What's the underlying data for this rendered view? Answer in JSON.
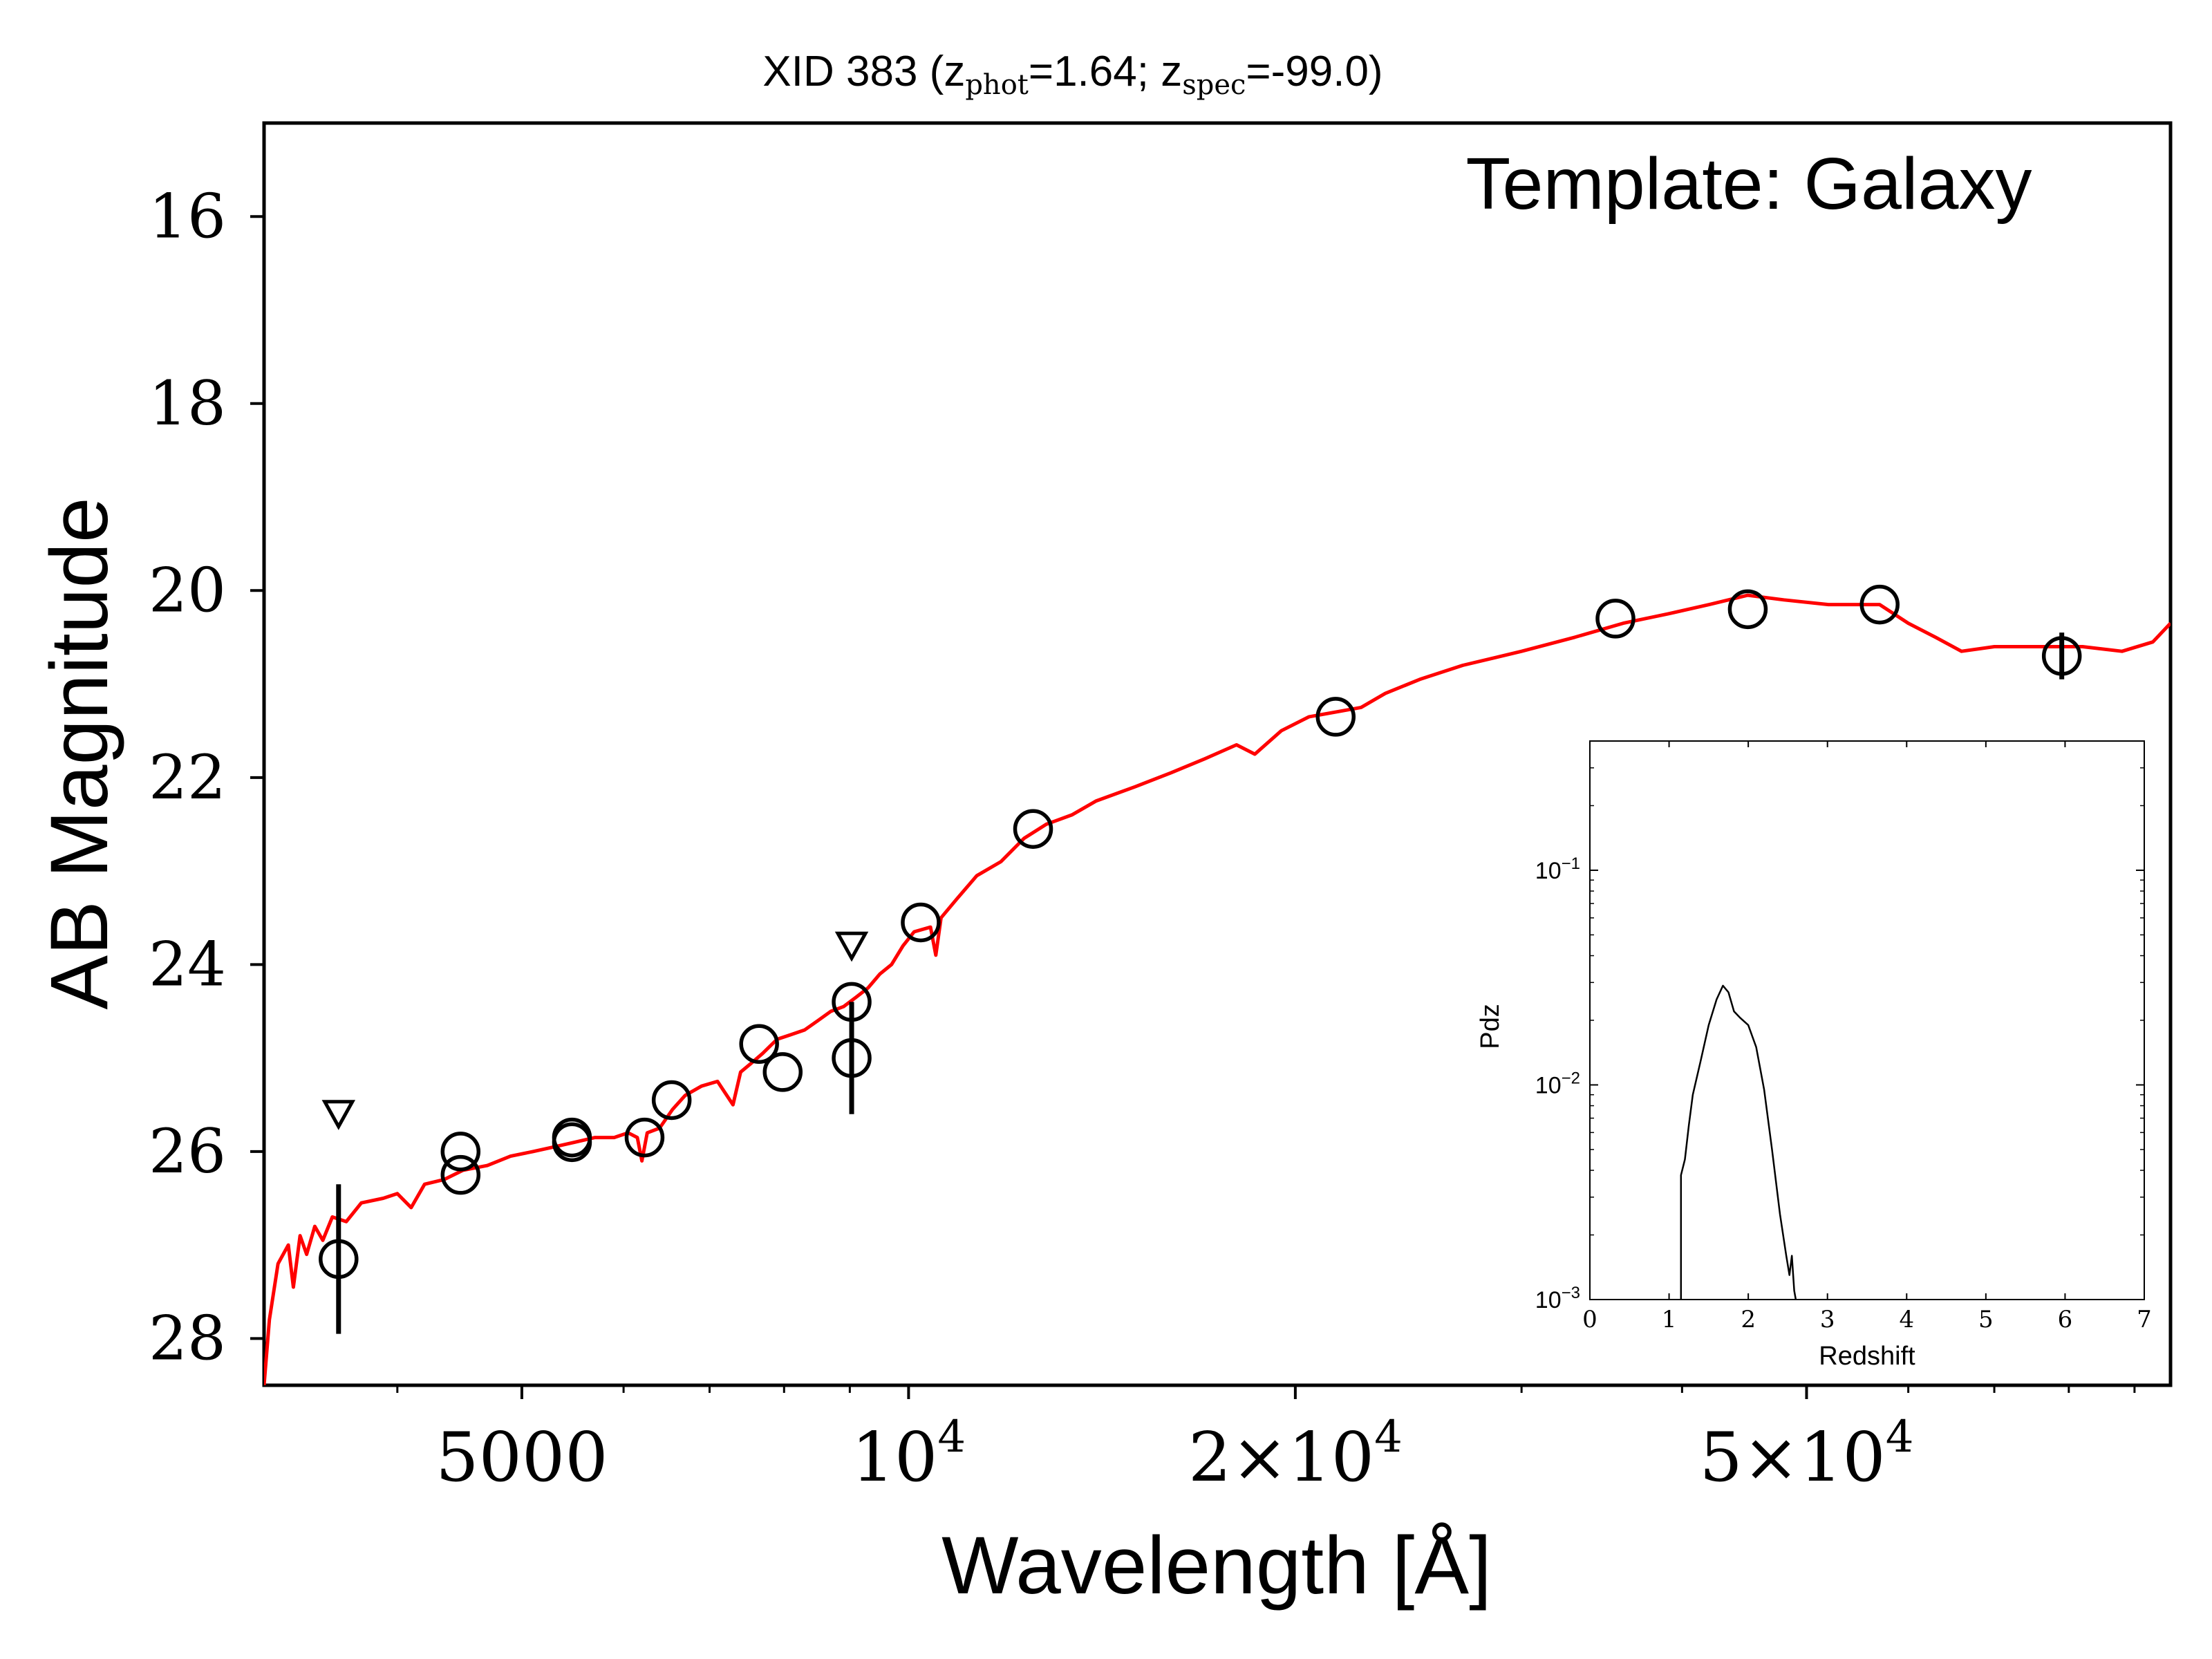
{
  "chart_data": [
    {
      "type": "scatter",
      "title_parts": {
        "prefix": "XID 383 (z",
        "sub_phot": "phot",
        "mid": "=1.64; z",
        "sub_spec": "spec",
        "suffix": "=-99.0)"
      },
      "xlabel": "Wavelength [Å]",
      "ylabel": "AB Magnitude",
      "annotation": "Template: Galaxy",
      "x_scale": "log",
      "xlim": [
        3150,
        96000
      ],
      "ylim": [
        28.5,
        15
      ],
      "y_inverted": true,
      "y_ticks": [
        16,
        18,
        20,
        22,
        24,
        26,
        28
      ],
      "y_tick_labels": [
        "16",
        "18",
        "20",
        "22",
        "24",
        "26",
        "28"
      ],
      "x_major_ticks": [
        {
          "value": 5000,
          "label_main": "5000",
          "label_exp": ""
        },
        {
          "value": 10000,
          "label_main": "10",
          "label_exp": "4"
        },
        {
          "value": 20000,
          "label_main": "2×10",
          "label_exp": "4"
        },
        {
          "value": 50000,
          "label_main": "5×10",
          "label_exp": "4"
        }
      ],
      "x_minor_ticks": [
        4000,
        6000,
        7000,
        8000,
        9000,
        30000,
        40000,
        60000,
        70000,
        80000,
        90000
      ],
      "series": [
        {
          "kind": "photometry",
          "color": "#000000",
          "points": [
            {
              "x": 3600,
              "y": 27.15,
              "err": 0.8
            },
            {
              "x": 4480,
              "y": 26.25,
              "err": 0.1
            },
            {
              "x": 4480,
              "y": 26.0,
              "err": 0.05
            },
            {
              "x": 5470,
              "y": 25.85,
              "err": 0.1
            },
            {
              "x": 5470,
              "y": 25.9,
              "err": 0.05
            },
            {
              "x": 6230,
              "y": 25.85,
              "err": 0.08
            },
            {
              "x": 6540,
              "y": 25.45,
              "err": 0.08
            },
            {
              "x": 7650,
              "y": 24.85,
              "err": 0.06
            },
            {
              "x": 7980,
              "y": 25.15,
              "err": 0.08
            },
            {
              "x": 9030,
              "y": 24.4,
              "err": 0.08
            },
            {
              "x": 9030,
              "y": 25.0,
              "err": 0.6
            },
            {
              "x": 10220,
              "y": 23.55,
              "err": 0.05
            },
            {
              "x": 12500,
              "y": 22.55,
              "err": 0.04
            },
            {
              "x": 21500,
              "y": 21.35,
              "err": 0.04
            },
            {
              "x": 35500,
              "y": 20.3,
              "err": 0.05
            },
            {
              "x": 45000,
              "y": 20.2,
              "err": 0.05
            },
            {
              "x": 57000,
              "y": 20.15,
              "err": 0.06
            },
            {
              "x": 79000,
              "y": 20.7,
              "err": 0.25
            }
          ]
        },
        {
          "kind": "upper_limits",
          "color": "#000000",
          "points": [
            {
              "x": 3600,
              "y": 25.6
            },
            {
              "x": 9030,
              "y": 23.8
            }
          ]
        },
        {
          "kind": "template",
          "color": "#ff0000",
          "points": [
            [
              3150,
              28.5
            ],
            [
              3180,
              27.8
            ],
            [
              3230,
              27.2
            ],
            [
              3290,
              27.0
            ],
            [
              3320,
              27.45
            ],
            [
              3360,
              26.9
            ],
            [
              3400,
              27.1
            ],
            [
              3450,
              26.8
            ],
            [
              3500,
              26.95
            ],
            [
              3560,
              26.7
            ],
            [
              3650,
              26.75
            ],
            [
              3750,
              26.55
            ],
            [
              3900,
              26.5
            ],
            [
              4000,
              26.45
            ],
            [
              4100,
              26.6
            ],
            [
              4200,
              26.35
            ],
            [
              4350,
              26.3
            ],
            [
              4500,
              26.2
            ],
            [
              4700,
              26.15
            ],
            [
              4900,
              26.05
            ],
            [
              5100,
              26.0
            ],
            [
              5300,
              25.95
            ],
            [
              5500,
              25.9
            ],
            [
              5700,
              25.85
            ],
            [
              5900,
              25.85
            ],
            [
              6050,
              25.8
            ],
            [
              6150,
              25.85
            ],
            [
              6200,
              26.1
            ],
            [
              6260,
              25.8
            ],
            [
              6400,
              25.75
            ],
            [
              6550,
              25.55
            ],
            [
              6700,
              25.4
            ],
            [
              6900,
              25.3
            ],
            [
              7100,
              25.25
            ],
            [
              7300,
              25.5
            ],
            [
              7400,
              25.15
            ],
            [
              7550,
              25.05
            ],
            [
              7700,
              24.95
            ],
            [
              7900,
              24.8
            ],
            [
              8100,
              24.75
            ],
            [
              8300,
              24.7
            ],
            [
              8500,
              24.6
            ],
            [
              8700,
              24.5
            ],
            [
              8900,
              24.45
            ],
            [
              9100,
              24.35
            ],
            [
              9300,
              24.25
            ],
            [
              9500,
              24.1
            ],
            [
              9700,
              24.0
            ],
            [
              9900,
              23.8
            ],
            [
              10100,
              23.65
            ],
            [
              10400,
              23.6
            ],
            [
              10500,
              23.9
            ],
            [
              10600,
              23.5
            ],
            [
              10900,
              23.3
            ],
            [
              11300,
              23.05
            ],
            [
              11800,
              22.9
            ],
            [
              12300,
              22.65
            ],
            [
              12800,
              22.5
            ],
            [
              13400,
              22.4
            ],
            [
              14000,
              22.25
            ],
            [
              15000,
              22.1
            ],
            [
              16000,
              21.95
            ],
            [
              17000,
              21.8
            ],
            [
              18000,
              21.65
            ],
            [
              18600,
              21.75
            ],
            [
              19500,
              21.5
            ],
            [
              20500,
              21.35
            ],
            [
              21500,
              21.3
            ],
            [
              22500,
              21.25
            ],
            [
              23500,
              21.1
            ],
            [
              25000,
              20.95
            ],
            [
              27000,
              20.8
            ],
            [
              30000,
              20.65
            ],
            [
              33000,
              20.5
            ],
            [
              36000,
              20.35
            ],
            [
              39000,
              20.25
            ],
            [
              42000,
              20.15
            ],
            [
              45000,
              20.05
            ],
            [
              48000,
              20.1
            ],
            [
              52000,
              20.15
            ],
            [
              57000,
              20.15
            ],
            [
              60000,
              20.35
            ],
            [
              63000,
              20.5
            ],
            [
              66000,
              20.65
            ],
            [
              70000,
              20.6
            ],
            [
              76000,
              20.6
            ],
            [
              82000,
              20.6
            ],
            [
              88000,
              20.65
            ],
            [
              93000,
              20.55
            ],
            [
              96000,
              20.35
            ]
          ]
        }
      ]
    },
    {
      "type": "line",
      "xlabel": "Redshift",
      "ylabel": "Pdz",
      "y_scale": "log",
      "xlim": [
        0,
        7
      ],
      "ylim": [
        0.001,
        0.4
      ],
      "x_ticks": [
        0,
        1,
        2,
        3,
        4,
        5,
        6,
        7
      ],
      "x_tick_labels": [
        "0",
        "1",
        "2",
        "3",
        "4",
        "5",
        "6",
        "7"
      ],
      "y_ticks": [
        {
          "value": 0.001,
          "base": "10",
          "exp": "−3"
        },
        {
          "value": 0.01,
          "base": "10",
          "exp": "−2"
        },
        {
          "value": 0.1,
          "base": "10",
          "exp": "−1"
        }
      ],
      "series": [
        {
          "color": "#000000",
          "points": [
            [
              1.15,
              0.001
            ],
            [
              1.15,
              0.0038
            ],
            [
              1.2,
              0.0045
            ],
            [
              1.25,
              0.0065
            ],
            [
              1.3,
              0.009
            ],
            [
              1.4,
              0.013
            ],
            [
              1.5,
              0.019
            ],
            [
              1.6,
              0.025
            ],
            [
              1.68,
              0.029
            ],
            [
              1.75,
              0.027
            ],
            [
              1.82,
              0.022
            ],
            [
              1.9,
              0.0205
            ],
            [
              2.0,
              0.019
            ],
            [
              2.1,
              0.015
            ],
            [
              2.2,
              0.0095
            ],
            [
              2.3,
              0.005
            ],
            [
              2.4,
              0.0025
            ],
            [
              2.48,
              0.0016
            ],
            [
              2.52,
              0.0013
            ],
            [
              2.55,
              0.0016
            ],
            [
              2.58,
              0.0011
            ],
            [
              2.6,
              0.001
            ]
          ]
        }
      ]
    }
  ]
}
